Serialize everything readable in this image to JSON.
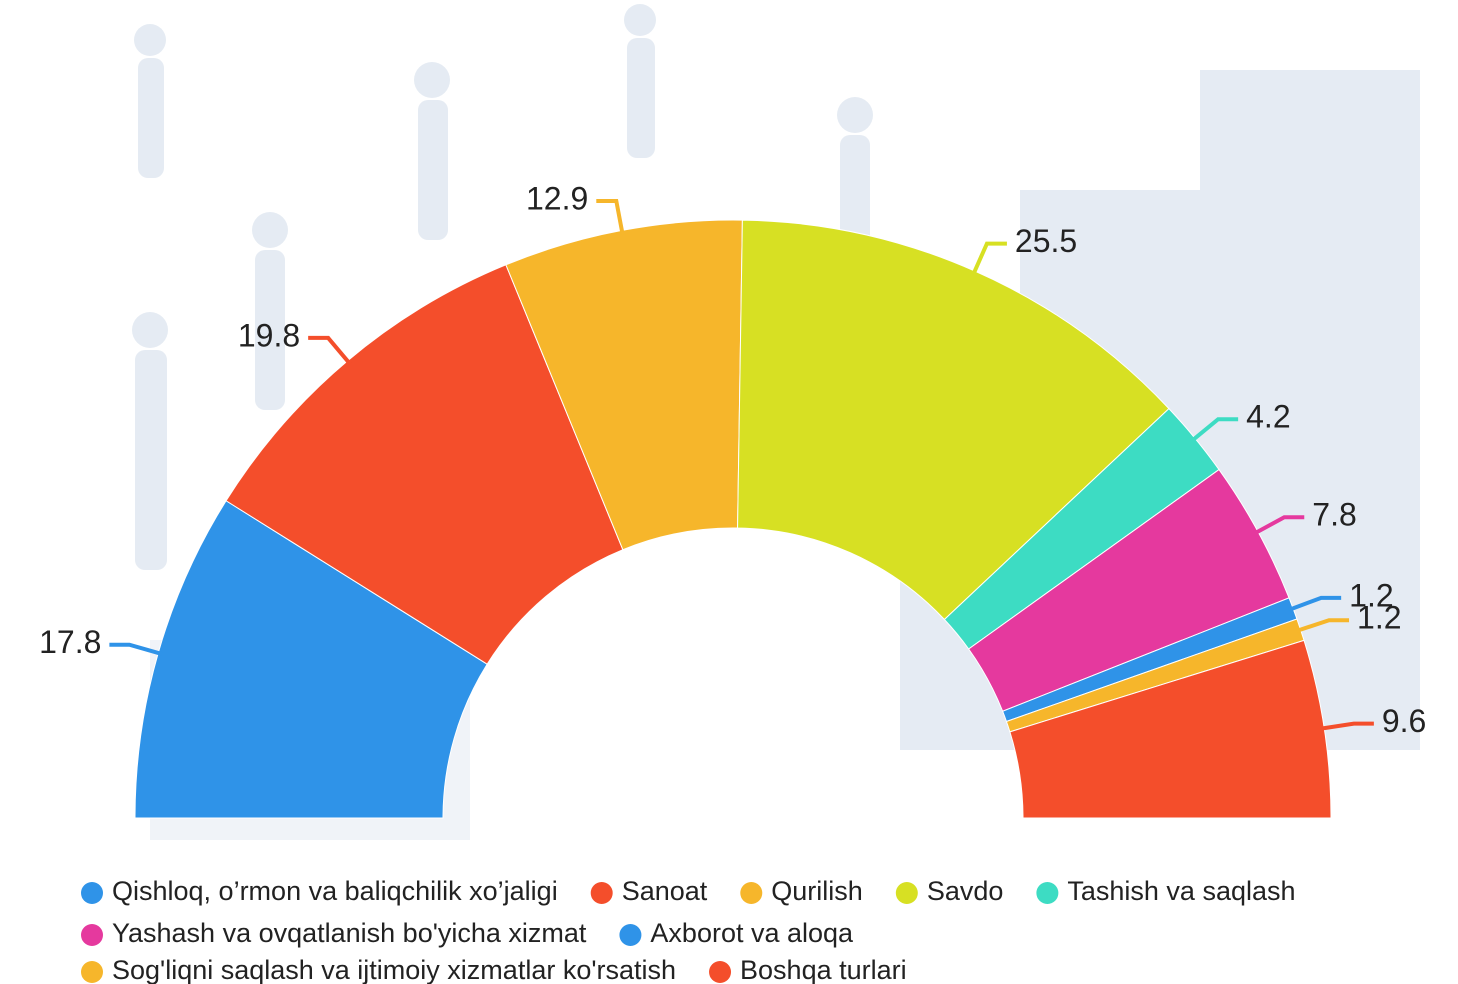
{
  "chart_data": {
    "type": "pie",
    "half": true,
    "categories": [
      "Qishloq, o’rmon va baliqchilik xo’jaligi",
      "Sanoat",
      "Qurilish",
      "Savdo",
      "Tashish va saqlash",
      "Yashash va ovqatlanish bo'yicha xizmat",
      "Axborot va aloqa",
      "Sog'liqni saqlash va ijtimoiy xizmatlar ko'rsatish",
      "Boshqa turlari"
    ],
    "values": [
      17.8,
      19.8,
      12.9,
      25.5,
      4.2,
      7.8,
      1.2,
      1.2,
      9.6
    ],
    "colors": [
      "#2f93e8",
      "#f44e2b",
      "#f6b62b",
      "#d7e023",
      "#3ddcc3",
      "#e5399e",
      "#2f93e8",
      "#f6b62b",
      "#f44e2b"
    ]
  }
}
